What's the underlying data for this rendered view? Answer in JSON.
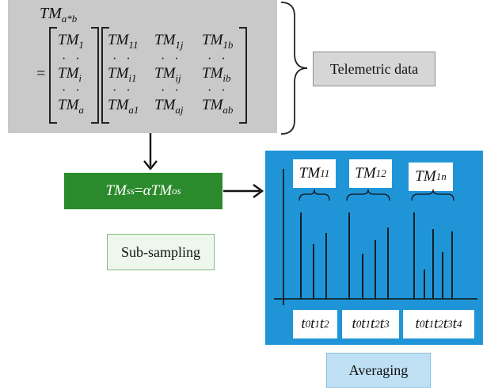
{
  "matrix": {
    "title": "TM",
    "title_sub": "a*b",
    "equals": "=",
    "left_vector": [
      {
        "base": "TM",
        "sub": "1"
      },
      {
        "dots": "· ·"
      },
      {
        "base": "TM",
        "sub": "i"
      },
      {
        "dots": "· ·"
      },
      {
        "base": "TM",
        "sub": "a"
      }
    ],
    "rows": [
      [
        {
          "base": "TM",
          "sub": "11"
        },
        {
          "base": "TM",
          "sub": "1j"
        },
        {
          "base": "TM",
          "sub": "1b"
        }
      ],
      [
        "· ·",
        "· ·",
        "· ·"
      ],
      [
        {
          "base": "TM",
          "sub": "i1"
        },
        {
          "base": "TM",
          "sub": "ij"
        },
        {
          "base": "TM",
          "sub": "ib"
        }
      ],
      [
        "· ·",
        "· ·",
        "· ·"
      ],
      [
        {
          "base": "TM",
          "sub": "a1"
        },
        {
          "base": "TM",
          "sub": "aj"
        },
        {
          "base": "TM",
          "sub": "ab"
        }
      ]
    ]
  },
  "telemetric_label": "Telemetric data",
  "formula": {
    "lhs": "TM",
    "lhs_sub": "ss",
    "eq": " = ",
    "alpha": "α",
    "rhs": "TM",
    "rhs_sub": "os"
  },
  "subsampling_label": "Sub-sampling",
  "averaging_label": "Averaging",
  "groups": [
    {
      "title": "TM",
      "title_sub": "11",
      "times": [
        "0",
        "1",
        "2"
      ]
    },
    {
      "title": "TM",
      "title_sub": "12",
      "times": [
        "0",
        "1",
        "2",
        "3"
      ]
    },
    {
      "title": "TM",
      "title_sub": "1n",
      "times": [
        "0",
        "1",
        "2",
        "3",
        "4"
      ]
    }
  ],
  "time_symbol": "t",
  "colors": {
    "matrix_bg": "#c9c9c9",
    "formula_bg": "#2b8a2b",
    "avg_bg": "#1f95d8",
    "averaging_box": "#bfe0f4",
    "subsampling_box": "#eef7ee"
  }
}
